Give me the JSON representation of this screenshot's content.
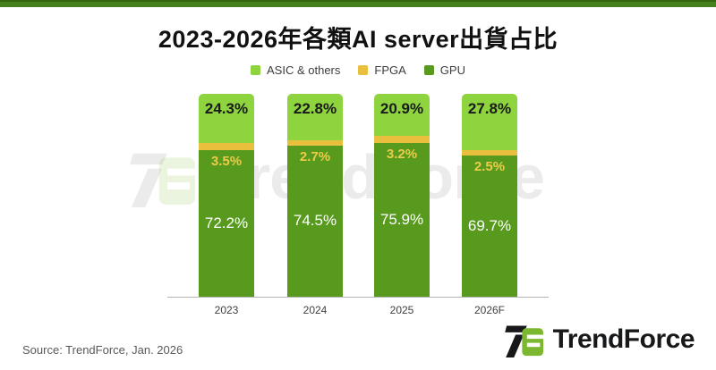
{
  "banner_color": "#47801f",
  "banner_edge_color": "#35640f",
  "title": "2023-2026年各類AI server出貨占比",
  "legend": [
    {
      "label": "ASIC & others",
      "color": "#8ed43e"
    },
    {
      "label": "FPGA",
      "color": "#e9bf3e"
    },
    {
      "label": "GPU",
      "color": "#579a1e"
    }
  ],
  "chart_data": {
    "type": "bar",
    "stacked": true,
    "unit": "%",
    "title": "2023-2026年各類AI server出貨占比",
    "categories": [
      "2023",
      "2024",
      "2025",
      "2026F"
    ],
    "series": [
      {
        "name": "ASIC & others",
        "color": "#8ed43e",
        "values": [
          24.3,
          22.8,
          20.9,
          27.8
        ]
      },
      {
        "name": "FPGA",
        "color": "#e9bf3e",
        "values": [
          3.5,
          2.7,
          3.2,
          2.5
        ]
      },
      {
        "name": "GPU",
        "color": "#579a1e",
        "values": [
          72.2,
          74.5,
          75.9,
          69.7
        ]
      }
    ],
    "data_labels": {
      "ASIC & others": [
        "24.3%",
        "22.8%",
        "20.9%",
        "27.8%"
      ],
      "FPGA": [
        "3.5%",
        "2.7%",
        "3.2%",
        "2.5%"
      ],
      "GPU": [
        "72.2%",
        "74.5%",
        "75.9%",
        "69.7%"
      ]
    },
    "ylim": [
      0,
      100
    ],
    "grid": false,
    "legend_position": "top"
  },
  "watermark_text": "TrendForce",
  "source_note": "Source: TrendForce, Jan. 2026",
  "brand": {
    "name": "TrendForce",
    "logo_green": "#7cb82f",
    "logo_black": "#17181a"
  }
}
